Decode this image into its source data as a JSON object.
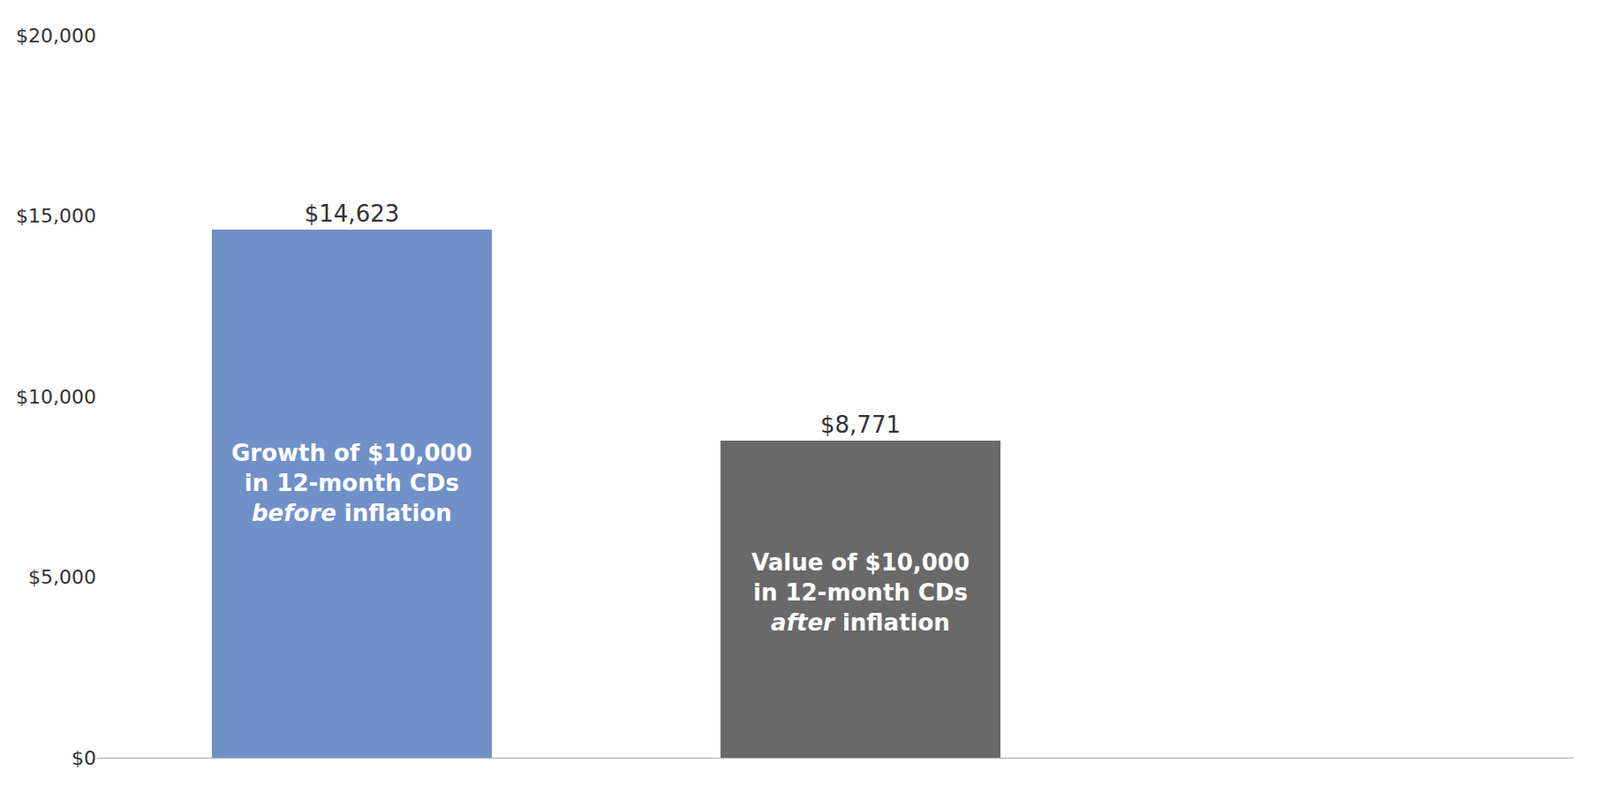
{
  "chart_data": {
    "type": "bar",
    "categories": [
      null,
      null
    ],
    "values": [
      14623,
      8771
    ],
    "value_labels": [
      "$14,623",
      "$8,771"
    ],
    "data_labels": true,
    "colors": [
      "#7090C8",
      "#696969"
    ],
    "ylim": [
      0,
      20000
    ],
    "yticks": [
      {
        "value": 0,
        "label": "$0"
      },
      {
        "value": 5000,
        "label": "$5,000"
      },
      {
        "value": 10000,
        "label": "$10,000"
      },
      {
        "value": 15000,
        "label": "$15,000"
      },
      {
        "value": 20000,
        "label": "$20,000"
      }
    ],
    "grid": false,
    "tick_labels": "y",
    "annotations": [
      [
        "Growth of $10,000",
        "in 12-month CDs",
        "before inflation"
      ],
      [
        "Value of $10,000",
        "in 12-month CDs",
        "after inflation"
      ]
    ]
  }
}
